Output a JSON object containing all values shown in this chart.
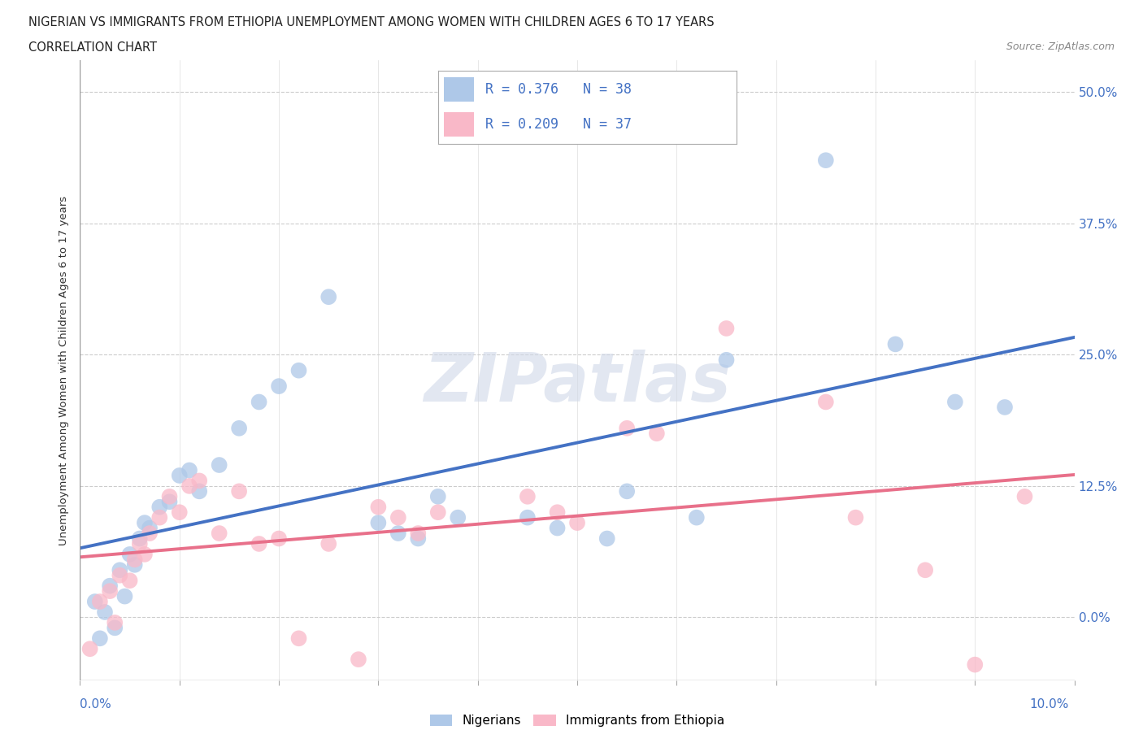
{
  "title_line1": "NIGERIAN VS IMMIGRANTS FROM ETHIOPIA UNEMPLOYMENT AMONG WOMEN WITH CHILDREN AGES 6 TO 17 YEARS",
  "title_line2": "CORRELATION CHART",
  "source": "Source: ZipAtlas.com",
  "ylabel": "Unemployment Among Women with Children Ages 6 to 17 years",
  "ytick_labels": [
    "0.0%",
    "12.5%",
    "25.0%",
    "37.5%",
    "50.0%"
  ],
  "ytick_values": [
    0.0,
    12.5,
    25.0,
    37.5,
    50.0
  ],
  "xlim": [
    0.0,
    10.0
  ],
  "ylim": [
    -6.0,
    53.0
  ],
  "legend_blue_label": "Nigerians",
  "legend_pink_label": "Immigrants from Ethiopia",
  "r_blue": "R = 0.376",
  "n_blue": "N = 38",
  "r_pink": "R = 0.209",
  "n_pink": "N = 37",
  "watermark": "ZIPatlas",
  "blue_color": "#aec8e8",
  "pink_color": "#f9b8c8",
  "blue_line_color": "#4472c4",
  "pink_line_color": "#e8708a",
  "blue_scatter": [
    [
      0.15,
      1.5
    ],
    [
      0.2,
      -2.0
    ],
    [
      0.25,
      0.5
    ],
    [
      0.3,
      3.0
    ],
    [
      0.35,
      -1.0
    ],
    [
      0.4,
      4.5
    ],
    [
      0.45,
      2.0
    ],
    [
      0.5,
      6.0
    ],
    [
      0.55,
      5.0
    ],
    [
      0.6,
      7.5
    ],
    [
      0.65,
      9.0
    ],
    [
      0.7,
      8.5
    ],
    [
      0.8,
      10.5
    ],
    [
      0.9,
      11.0
    ],
    [
      1.0,
      13.5
    ],
    [
      1.1,
      14.0
    ],
    [
      1.2,
      12.0
    ],
    [
      1.4,
      14.5
    ],
    [
      1.6,
      18.0
    ],
    [
      1.8,
      20.5
    ],
    [
      2.0,
      22.0
    ],
    [
      2.2,
      23.5
    ],
    [
      2.5,
      30.5
    ],
    [
      3.0,
      9.0
    ],
    [
      3.2,
      8.0
    ],
    [
      3.4,
      7.5
    ],
    [
      3.6,
      11.5
    ],
    [
      3.8,
      9.5
    ],
    [
      4.5,
      9.5
    ],
    [
      4.8,
      8.5
    ],
    [
      5.3,
      7.5
    ],
    [
      5.5,
      12.0
    ],
    [
      6.2,
      9.5
    ],
    [
      6.5,
      24.5
    ],
    [
      7.5,
      43.5
    ],
    [
      8.2,
      26.0
    ],
    [
      8.8,
      20.5
    ],
    [
      9.3,
      20.0
    ]
  ],
  "pink_scatter": [
    [
      0.1,
      -3.0
    ],
    [
      0.2,
      1.5
    ],
    [
      0.3,
      2.5
    ],
    [
      0.35,
      -0.5
    ],
    [
      0.4,
      4.0
    ],
    [
      0.5,
      3.5
    ],
    [
      0.55,
      5.5
    ],
    [
      0.6,
      7.0
    ],
    [
      0.65,
      6.0
    ],
    [
      0.7,
      8.0
    ],
    [
      0.8,
      9.5
    ],
    [
      0.9,
      11.5
    ],
    [
      1.0,
      10.0
    ],
    [
      1.1,
      12.5
    ],
    [
      1.2,
      13.0
    ],
    [
      1.4,
      8.0
    ],
    [
      1.6,
      12.0
    ],
    [
      1.8,
      7.0
    ],
    [
      2.0,
      7.5
    ],
    [
      2.2,
      -2.0
    ],
    [
      2.5,
      7.0
    ],
    [
      2.8,
      -4.0
    ],
    [
      3.0,
      10.5
    ],
    [
      3.2,
      9.5
    ],
    [
      3.4,
      8.0
    ],
    [
      3.6,
      10.0
    ],
    [
      4.5,
      11.5
    ],
    [
      4.8,
      10.0
    ],
    [
      5.0,
      9.0
    ],
    [
      5.5,
      18.0
    ],
    [
      5.8,
      17.5
    ],
    [
      6.5,
      27.5
    ],
    [
      7.5,
      20.5
    ],
    [
      7.8,
      9.5
    ],
    [
      8.5,
      4.5
    ],
    [
      9.0,
      -4.5
    ],
    [
      9.5,
      11.5
    ]
  ]
}
